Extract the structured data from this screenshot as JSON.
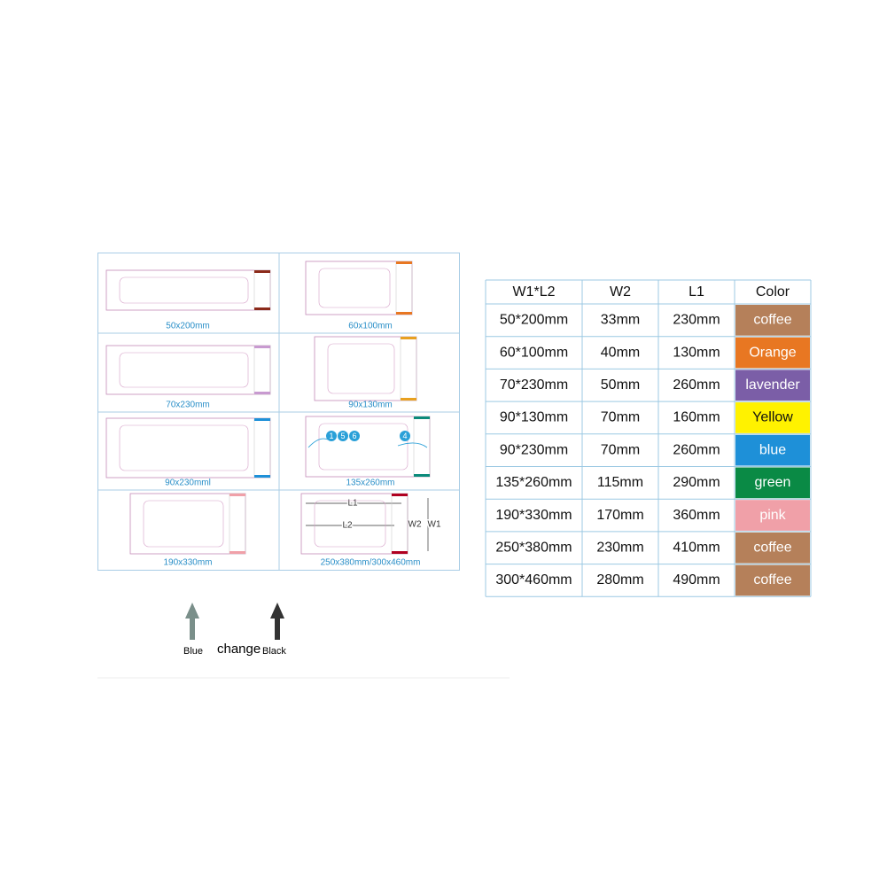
{
  "panels": [
    {
      "caption": "50x200mm"
    },
    {
      "caption": "60x100mm"
    },
    {
      "caption": "70x230mm"
    },
    {
      "caption": "90x130mm"
    },
    {
      "caption": "90x230mml"
    },
    {
      "caption": "135x260mm"
    },
    {
      "caption": "190x330mm"
    },
    {
      "caption": "250x380mm/300x460mm"
    }
  ],
  "diagram": {
    "l1": "L1",
    "l2": "L2",
    "w2": "W2",
    "w1": "W1",
    "markers": [
      "1",
      "5",
      "6",
      "4"
    ]
  },
  "legend": {
    "left": "Blue",
    "middle": "change",
    "right": "Black"
  },
  "table": {
    "header": [
      "W1*L2",
      "W2",
      "L1",
      "Color"
    ],
    "rows": [
      [
        "50*200mm",
        "33mm",
        "230mm",
        "coffee"
      ],
      [
        "60*100mm",
        "40mm",
        "130mm",
        "Orange"
      ],
      [
        "70*230mm",
        "50mm",
        "260mm",
        "lavender"
      ],
      [
        "90*130mm",
        "70mm",
        "160mm",
        "Yellow"
      ],
      [
        "90*230mm",
        "70mm",
        "260mm",
        "blue"
      ],
      [
        "135*260mm",
        "115mm",
        "290mm",
        "green"
      ],
      [
        "190*330mm",
        "170mm",
        "360mm",
        "pink"
      ],
      [
        "250*380mm",
        "230mm",
        "410mm",
        "coffee"
      ],
      [
        "300*460mm",
        "280mm",
        "490mm",
        "coffee"
      ]
    ],
    "swatches": [
      "#b5805a",
      "#e87722",
      "#7b5ea7",
      "#fff200",
      "#1e90d8",
      "#0a8a45",
      "#f0a0a8",
      "#b5805a",
      "#b5805a"
    ]
  }
}
